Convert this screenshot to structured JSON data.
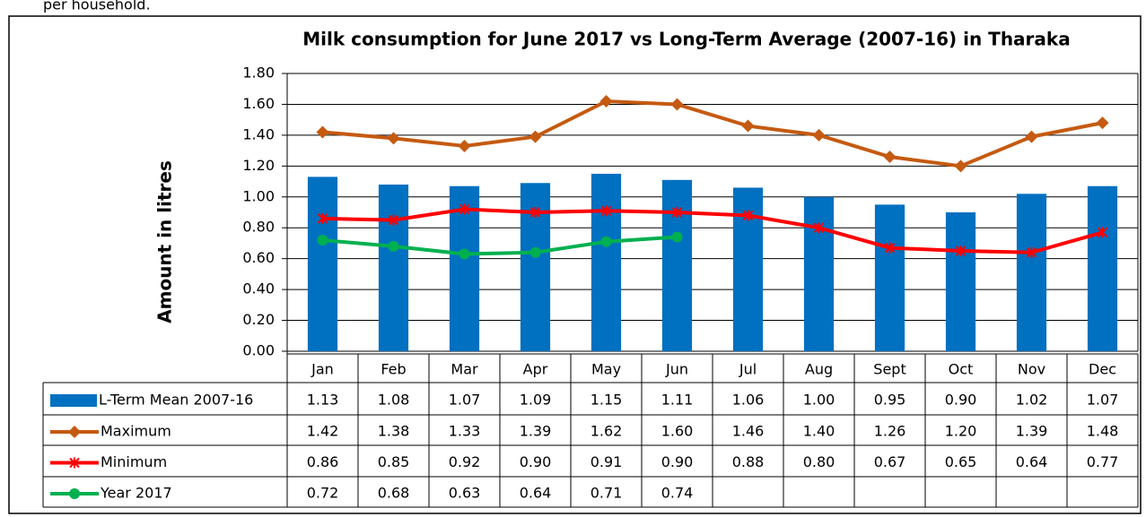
{
  "page_text": "per household.",
  "chart_data": {
    "type": "bar",
    "title": "Milk consumption for June 2017 vs Long-Term Average (2007-16) in Tharaka",
    "y_label": "Amount in litres",
    "categories": [
      "Jan",
      "Feb",
      "Mar",
      "Apr",
      "May",
      "Jun",
      "Jul",
      "Aug",
      "Sept",
      "Oct",
      "Nov",
      "Dec"
    ],
    "series": [
      {
        "name": "L-Term Mean 2007-16",
        "type": "bar",
        "color": "#0070c0",
        "values": [
          1.13,
          1.08,
          1.07,
          1.09,
          1.15,
          1.11,
          1.06,
          1.0,
          0.95,
          0.9,
          1.02,
          1.07
        ],
        "value_labels": [
          "1.13",
          "1.08",
          "1.07",
          "1.09",
          "1.15",
          "1.11",
          "1.06",
          "1.00",
          "0.95",
          "0.90",
          "1.02",
          "1.07"
        ]
      },
      {
        "name": "Maximum",
        "type": "line",
        "marker": "diamond",
        "color": "#c55a11",
        "values": [
          1.42,
          1.38,
          1.33,
          1.39,
          1.62,
          1.6,
          1.46,
          1.4,
          1.26,
          1.2,
          1.39,
          1.48
        ],
        "value_labels": [
          "1.42",
          "1.38",
          "1.33",
          "1.39",
          "1.62",
          "1.60",
          "1.46",
          "1.40",
          "1.26",
          "1.20",
          "1.39",
          "1.48"
        ]
      },
      {
        "name": "Minimum",
        "type": "line",
        "marker": "star",
        "color": "#ff0000",
        "values": [
          0.86,
          0.85,
          0.92,
          0.9,
          0.91,
          0.9,
          0.88,
          0.8,
          0.67,
          0.65,
          0.64,
          0.77
        ],
        "value_labels": [
          "0.86",
          "0.85",
          "0.92",
          "0.90",
          "0.91",
          "0.90",
          "0.88",
          "0.80",
          "0.67",
          "0.65",
          "0.64",
          "0.77"
        ]
      },
      {
        "name": "Year 2017",
        "type": "line",
        "marker": "circle",
        "color": "#00b050",
        "values": [
          0.72,
          0.68,
          0.63,
          0.64,
          0.71,
          0.74,
          null,
          null,
          null,
          null,
          null,
          null
        ],
        "value_labels": [
          "0.72",
          "0.68",
          "0.63",
          "0.64",
          "0.71",
          "0.74",
          null,
          null,
          null,
          null,
          null,
          null
        ]
      }
    ],
    "ylim": [
      0,
      1.8
    ],
    "yticks": [
      {
        "value": 0,
        "label": "0.00"
      },
      {
        "value": 0.2,
        "label": "0.20"
      },
      {
        "value": 0.4,
        "label": "0.40"
      },
      {
        "value": 0.6,
        "label": "0.60"
      },
      {
        "value": 0.8,
        "label": "0.80"
      },
      {
        "value": 1,
        "label": "1.00"
      },
      {
        "value": 1.2,
        "label": "1.20"
      },
      {
        "value": 1.4,
        "label": "1.40"
      },
      {
        "value": 1.6,
        "label": "1.60"
      },
      {
        "value": 1.8,
        "label": "1.80"
      }
    ],
    "grid": true
  }
}
